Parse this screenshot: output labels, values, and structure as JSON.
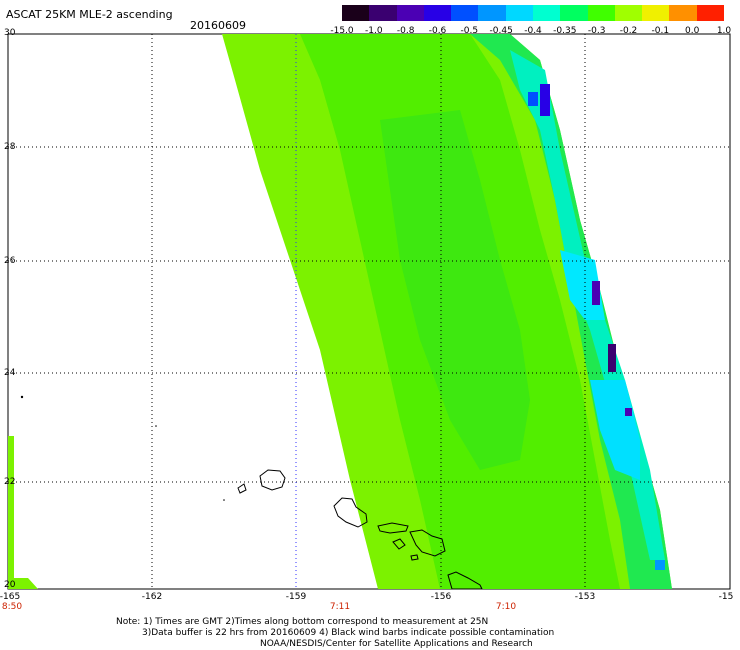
{
  "header": {
    "title": "ASCAT 25KM MLE-2 ascending",
    "date": "20160609"
  },
  "colorbar": {
    "labels": [
      "-15.0",
      "-1.0",
      "-0.8",
      "-0.6",
      "-0.5",
      "-0.45",
      "-0.4",
      "-0.35",
      "-0.3",
      "-0.2",
      "-0.1",
      "0.0",
      "1.0"
    ],
    "colors": [
      "#1a001a",
      "#3a0070",
      "#4b00b4",
      "#2800e6",
      "#0050ff",
      "#0096ff",
      "#00d8ff",
      "#00ffd0",
      "#00ff60",
      "#40ff00",
      "#a0ff00",
      "#f0f000",
      "#ff9000",
      "#ff2000"
    ]
  },
  "axes": {
    "lat_labels": [
      "30",
      "28",
      "26",
      "24",
      "22",
      "20"
    ],
    "lon_labels": [
      "-165",
      "-162",
      "-159",
      "-156",
      "-153",
      "-15"
    ],
    "time_labels": [
      {
        "text": "8:50",
        "lon": -165
      },
      {
        "text": "7:11",
        "lon": -159
      },
      {
        "text": "7:10",
        "lon": -155
      }
    ]
  },
  "notes": [
    "Note: 1) Times are GMT 2)Times along bottom correspond to measurement at 25N",
    "3)Data buffer is 22 hrs from 20160609 4) Black wind barbs indicate possible contamination",
    "NOAA/NESDIS/Center for Satellite Applications and Research"
  ],
  "colors": {
    "swath_base": "#7cf200",
    "gridline": "#000000",
    "coast": "#000000"
  }
}
